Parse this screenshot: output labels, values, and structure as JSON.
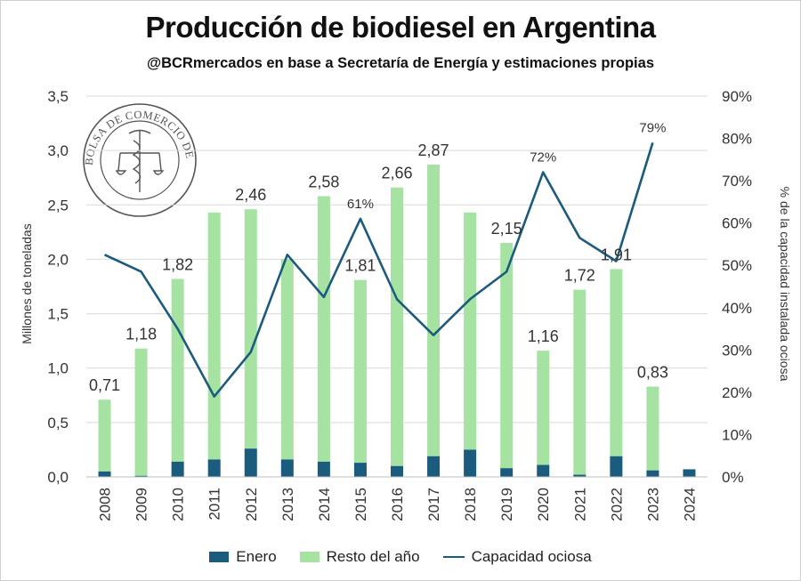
{
  "colors": {
    "enero": "#1b5b7e",
    "resto": "#a6e3a3",
    "line": "#1b5b7e",
    "grid": "#d9d9d9"
  },
  "logo": {
    "text": "BOLSA DE COMERCIO DE ROSARIO"
  },
  "chart_data": {
    "type": "bar",
    "title": "Producción de biodiesel en Argentina",
    "subtitle": "@BCRmercados en base a Secretaría de Energía y estimaciones propias",
    "ylabel": "Millones de toneladas",
    "y2label": "% de la capacidad instalada ociosa",
    "ylim": [
      0,
      3.5
    ],
    "y2lim": [
      0,
      0.9
    ],
    "y_ticks": [
      "0,0",
      "0,5",
      "1,0",
      "1,5",
      "2,0",
      "2,5",
      "3,0",
      "3,5"
    ],
    "y2_ticks": [
      "0%",
      "10%",
      "20%",
      "30%",
      "40%",
      "50%",
      "60%",
      "70%",
      "80%",
      "90%"
    ],
    "categories": [
      "2008",
      "2009",
      "2010",
      "2011",
      "2012",
      "2013",
      "2014",
      "2015",
      "2016",
      "2017",
      "2018",
      "2019",
      "2020",
      "2021",
      "2022",
      "2023",
      "2024"
    ],
    "series": [
      {
        "name": "Enero",
        "values": [
          0.05,
          0.01,
          0.14,
          0.16,
          0.26,
          0.16,
          0.14,
          0.13,
          0.1,
          0.19,
          0.25,
          0.08,
          0.11,
          0.02,
          0.19,
          0.06,
          0.07
        ]
      },
      {
        "name": "Resto del año",
        "values": [
          0.66,
          1.17,
          1.68,
          2.27,
          2.2,
          1.84,
          2.44,
          1.68,
          2.56,
          2.68,
          2.18,
          2.07,
          1.05,
          1.7,
          1.72,
          0.77,
          null
        ]
      },
      {
        "name": "Capacidad ociosa",
        "values": [
          0.525,
          0.485,
          0.35,
          0.19,
          0.295,
          0.525,
          0.425,
          0.61,
          0.42,
          0.335,
          0.42,
          0.485,
          0.72,
          0.565,
          0.51,
          0.79,
          null
        ]
      }
    ],
    "total_labels": [
      "0,71",
      "1,18",
      "1,82",
      null,
      "2,46",
      null,
      "2,58",
      "1,81",
      "2,66",
      "2,87",
      null,
      "2,15",
      "1,16",
      "1,72",
      "1,91",
      "0,83",
      null
    ],
    "line_labels": [
      null,
      null,
      null,
      null,
      null,
      null,
      null,
      "61%",
      null,
      null,
      null,
      null,
      "72%",
      null,
      null,
      "79%",
      null
    ],
    "legend": [
      "Enero",
      "Resto del año",
      "Capacidad ociosa"
    ]
  }
}
